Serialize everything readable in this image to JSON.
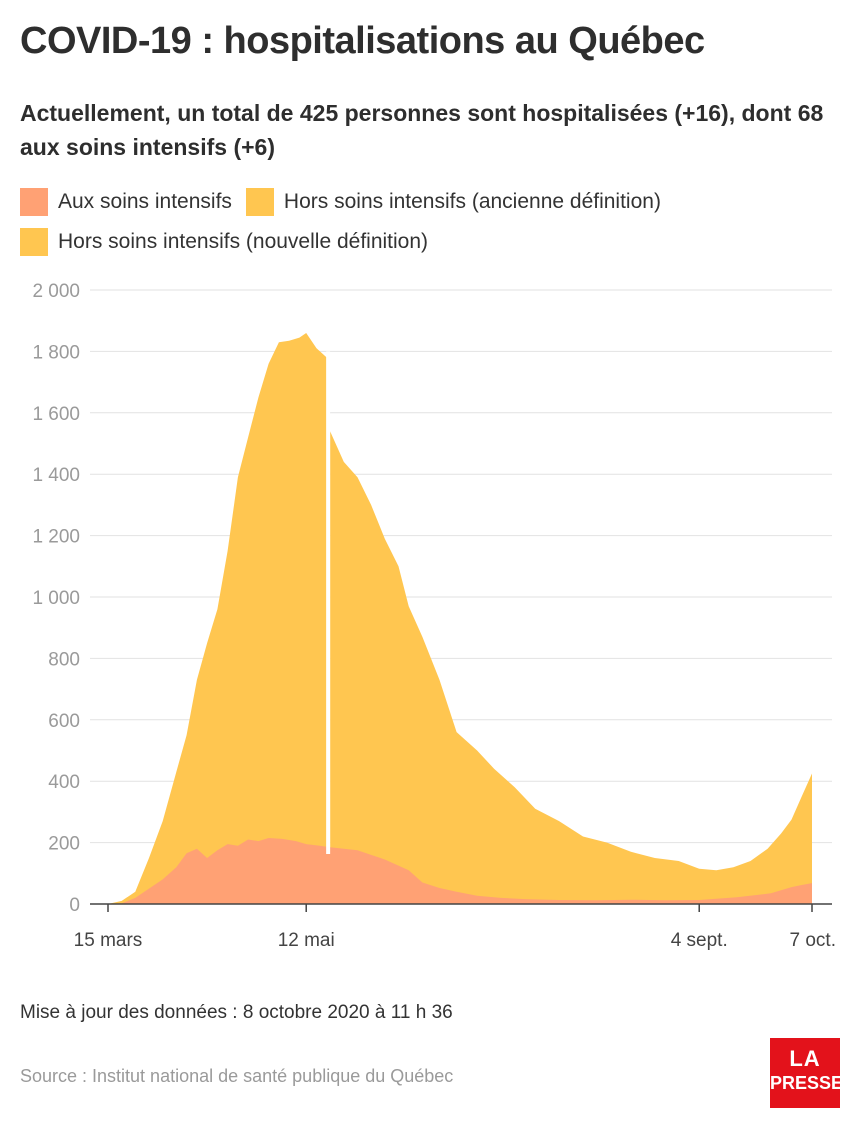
{
  "header": {
    "title": "COVID-19 : hospitalisations au Québec",
    "subtitle": "Actuellement, un total de 425 personnes sont hospitalisées (+16), dont 68 aux soins intensifs (+6)"
  },
  "legend": [
    {
      "label": "Aux soins intensifs",
      "color": "#ffa174"
    },
    {
      "label": "Hors soins intensifs (ancienne définition)",
      "color": "#ffc650"
    },
    {
      "label": "Hors soins intensifs (nouvelle définition)",
      "color": "#ffc650"
    }
  ],
  "chart_data": {
    "type": "area",
    "stacked": true,
    "x_axis": {
      "start": "2020-03-15",
      "end": "2020-10-07",
      "ticks": [
        {
          "date": "2020-03-15",
          "label": "15 mars"
        },
        {
          "date": "2020-05-12",
          "label": "12 mai"
        },
        {
          "date": "2020-09-04",
          "label": "4 sept."
        },
        {
          "date": "2020-10-07",
          "label": "7 oct."
        }
      ]
    },
    "y_axis": {
      "min": 0,
      "max": 2000,
      "ticks": [
        {
          "value": 0,
          "label": "0"
        },
        {
          "value": 200,
          "label": "200"
        },
        {
          "value": 400,
          "label": "400"
        },
        {
          "value": 600,
          "label": "600"
        },
        {
          "value": 800,
          "label": "800"
        },
        {
          "value": 1000,
          "label": "1 000"
        },
        {
          "value": 1200,
          "label": "1 200"
        },
        {
          "value": 1400,
          "label": "1 400"
        },
        {
          "value": 1600,
          "label": "1 600"
        },
        {
          "value": 1800,
          "label": "1 800"
        },
        {
          "value": 2000,
          "label": "2 000"
        }
      ]
    },
    "grid": true,
    "definition_change_date": "2020-05-19",
    "series": [
      {
        "name": "Aux soins intensifs",
        "color": "#ffa174",
        "points": [
          [
            "2020-03-15",
            0
          ],
          [
            "2020-03-19",
            2
          ],
          [
            "2020-03-23",
            20
          ],
          [
            "2020-03-27",
            50
          ],
          [
            "2020-03-31",
            80
          ],
          [
            "2020-04-04",
            120
          ],
          [
            "2020-04-07",
            165
          ],
          [
            "2020-04-10",
            180
          ],
          [
            "2020-04-13",
            150
          ],
          [
            "2020-04-16",
            175
          ],
          [
            "2020-04-19",
            195
          ],
          [
            "2020-04-22",
            190
          ],
          [
            "2020-04-25",
            210
          ],
          [
            "2020-04-28",
            205
          ],
          [
            "2020-05-01",
            215
          ],
          [
            "2020-05-05",
            212
          ],
          [
            "2020-05-09",
            205
          ],
          [
            "2020-05-12",
            195
          ],
          [
            "2020-05-16",
            190
          ],
          [
            "2020-05-19",
            185
          ],
          [
            "2020-05-23",
            180
          ],
          [
            "2020-05-27",
            175
          ],
          [
            "2020-05-31",
            160
          ],
          [
            "2020-06-04",
            145
          ],
          [
            "2020-06-08",
            125
          ],
          [
            "2020-06-11",
            110
          ],
          [
            "2020-06-15",
            70
          ],
          [
            "2020-06-20",
            52
          ],
          [
            "2020-06-25",
            40
          ],
          [
            "2020-07-01",
            27
          ],
          [
            "2020-07-08",
            20
          ],
          [
            "2020-07-15",
            16
          ],
          [
            "2020-07-25",
            13
          ],
          [
            "2020-08-05",
            12
          ],
          [
            "2020-08-15",
            14
          ],
          [
            "2020-08-25",
            12
          ],
          [
            "2020-09-04",
            13
          ],
          [
            "2020-09-15",
            22
          ],
          [
            "2020-09-25",
            35
          ],
          [
            "2020-10-01",
            55
          ],
          [
            "2020-10-04",
            62
          ],
          [
            "2020-10-07",
            68
          ]
        ]
      },
      {
        "name": "Hors soins intensifs (ancienne définition)",
        "color": "#ffc650",
        "segment_end": "2020-05-19",
        "totals": [
          [
            "2020-03-15",
            0
          ],
          [
            "2020-03-19",
            10
          ],
          [
            "2020-03-23",
            40
          ],
          [
            "2020-03-27",
            150
          ],
          [
            "2020-03-31",
            270
          ],
          [
            "2020-04-04",
            430
          ],
          [
            "2020-04-07",
            550
          ],
          [
            "2020-04-10",
            730
          ],
          [
            "2020-04-13",
            850
          ],
          [
            "2020-04-16",
            960
          ],
          [
            "2020-04-19",
            1150
          ],
          [
            "2020-04-22",
            1390
          ],
          [
            "2020-04-25",
            1520
          ],
          [
            "2020-04-28",
            1650
          ],
          [
            "2020-05-01",
            1760
          ],
          [
            "2020-05-04",
            1830
          ],
          [
            "2020-05-07",
            1835
          ],
          [
            "2020-05-10",
            1845
          ],
          [
            "2020-05-12",
            1860
          ],
          [
            "2020-05-15",
            1810
          ],
          [
            "2020-05-18",
            1780
          ]
        ]
      },
      {
        "name": "Hors soins intensifs (nouvelle définition)",
        "color": "#ffc650",
        "segment_start": "2020-05-19",
        "totals": [
          [
            "2020-05-19",
            1540
          ],
          [
            "2020-05-23",
            1440
          ],
          [
            "2020-05-27",
            1390
          ],
          [
            "2020-05-31",
            1300
          ],
          [
            "2020-06-04",
            1190
          ],
          [
            "2020-06-08",
            1100
          ],
          [
            "2020-06-11",
            970
          ],
          [
            "2020-06-15",
            870
          ],
          [
            "2020-06-20",
            730
          ],
          [
            "2020-06-25",
            560
          ],
          [
            "2020-07-01",
            500
          ],
          [
            "2020-07-06",
            440
          ],
          [
            "2020-07-12",
            380
          ],
          [
            "2020-07-18",
            310
          ],
          [
            "2020-07-25",
            270
          ],
          [
            "2020-08-01",
            220
          ],
          [
            "2020-08-08",
            200
          ],
          [
            "2020-08-15",
            170
          ],
          [
            "2020-08-22",
            150
          ],
          [
            "2020-08-29",
            140
          ],
          [
            "2020-09-04",
            115
          ],
          [
            "2020-09-09",
            110
          ],
          [
            "2020-09-14",
            120
          ],
          [
            "2020-09-19",
            140
          ],
          [
            "2020-09-24",
            180
          ],
          [
            "2020-09-28",
            230
          ],
          [
            "2020-10-01",
            275
          ],
          [
            "2020-10-04",
            350
          ],
          [
            "2020-10-07",
            425
          ]
        ]
      }
    ]
  },
  "footer": {
    "update": "Mise à jour des données : 8 octobre 2020 à 11 h 36",
    "source": "Source : Institut national de santé publique du Québec",
    "logo_line1": "LA",
    "logo_line2": "PRESSE"
  }
}
